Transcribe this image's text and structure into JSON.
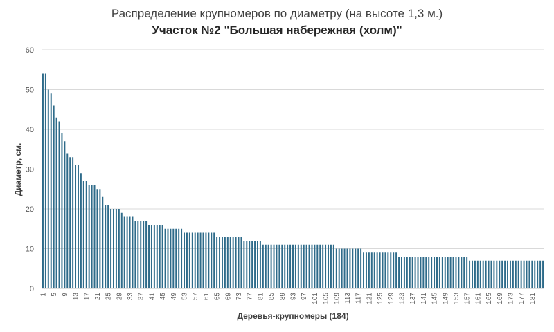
{
  "chart_data": {
    "type": "bar",
    "title": "Распределение крупномеров по диаметру (на высоте 1,3 м.)",
    "subtitle": "Участок №2 \"Большая набережная (холм)\"",
    "xlabel": "Деревья-крупномеры (184)",
    "ylabel": "Диаметр, см.",
    "ylim": [
      0,
      60
    ],
    "yticks": [
      0,
      10,
      20,
      30,
      40,
      50,
      60
    ],
    "xticks": [
      1,
      5,
      9,
      13,
      17,
      21,
      25,
      29,
      33,
      37,
      41,
      45,
      49,
      53,
      57,
      61,
      65,
      69,
      73,
      77,
      81,
      85,
      89,
      93,
      97,
      101,
      105,
      109,
      113,
      117,
      121,
      125,
      129,
      133,
      137,
      141,
      145,
      149,
      153,
      157,
      161,
      165,
      169,
      173,
      177,
      181
    ],
    "grid": true,
    "bar_color": "#2e6b8a",
    "categories_count": 184,
    "values": [
      54,
      54,
      50,
      49,
      46,
      43,
      42,
      39,
      37,
      34,
      33,
      33,
      31,
      31,
      29,
      27,
      27,
      26,
      26,
      26,
      25,
      25,
      23,
      21,
      21,
      20,
      20,
      20,
      20,
      19,
      18,
      18,
      18,
      18,
      17,
      17,
      17,
      17,
      17,
      16,
      16,
      16,
      16,
      16,
      16,
      15,
      15,
      15,
      15,
      15,
      15,
      15,
      14,
      14,
      14,
      14,
      14,
      14,
      14,
      14,
      14,
      14,
      14,
      14,
      13,
      13,
      13,
      13,
      13,
      13,
      13,
      13,
      13,
      13,
      12,
      12,
      12,
      12,
      12,
      12,
      12,
      11,
      11,
      11,
      11,
      11,
      11,
      11,
      11,
      11,
      11,
      11,
      11,
      11,
      11,
      11,
      11,
      11,
      11,
      11,
      11,
      11,
      11,
      11,
      11,
      11,
      11,
      11,
      10,
      10,
      10,
      10,
      10,
      10,
      10,
      10,
      10,
      10,
      9,
      9,
      9,
      9,
      9,
      9,
      9,
      9,
      9,
      9,
      9,
      9,
      9,
      8,
      8,
      8,
      8,
      8,
      8,
      8,
      8,
      8,
      8,
      8,
      8,
      8,
      8,
      8,
      8,
      8,
      8,
      8,
      8,
      8,
      8,
      8,
      8,
      8,
      8,
      7,
      7,
      7,
      7,
      7,
      7,
      7,
      7,
      7,
      7,
      7,
      7,
      7,
      7,
      7,
      7,
      7,
      7,
      7,
      7,
      7,
      7,
      7,
      7,
      7,
      7,
      7,
      7
    ]
  }
}
